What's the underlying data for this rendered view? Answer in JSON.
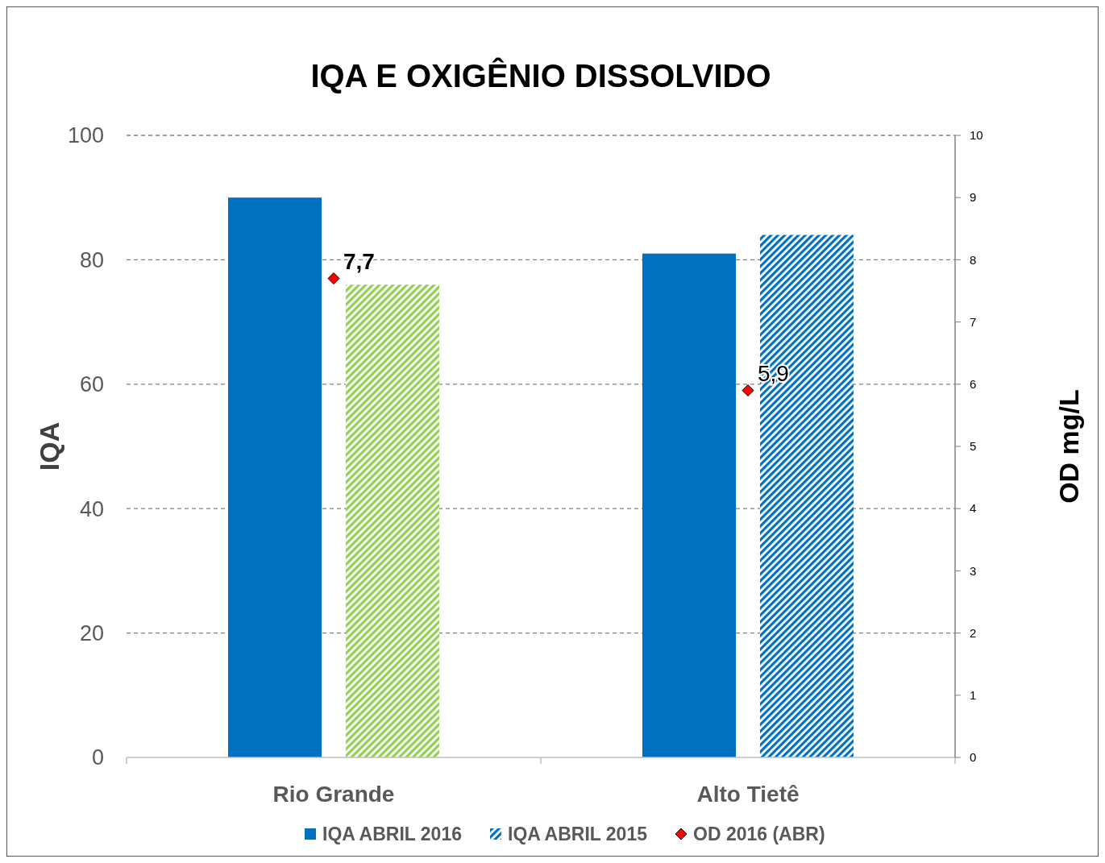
{
  "chart_data": {
    "type": "bar",
    "title": "IQA E OXIGÊNIO DISSOLVIDO",
    "ylabel": "IQA",
    "y2label": "OD mg/L",
    "categories": [
      "Rio Grande",
      "Alto Tietê"
    ],
    "series": [
      {
        "name": "IQA ABRIL 2016",
        "color": "#0070c0",
        "values": [
          90,
          81
        ]
      },
      {
        "name": "IQA ABRIL 2015",
        "color": "#0070c0",
        "colors": [
          "#92d050",
          "#0070c0"
        ],
        "values": [
          76,
          84
        ]
      },
      {
        "name": "OD 2016 (ABR)",
        "type": "scatter",
        "axis": "y2",
        "color": "#ff0000",
        "x": [
          "Rio Grande",
          "Alto Tietê"
        ],
        "values": [
          7.7,
          5.9
        ],
        "value_labels": [
          "7,7",
          "5,9"
        ]
      }
    ],
    "ylim": [
      0,
      100
    ],
    "yticks": [
      0,
      20,
      40,
      60,
      80,
      100
    ],
    "y2lim": [
      0,
      10
    ],
    "y2ticks": [
      0,
      1,
      2,
      3,
      4,
      5,
      6,
      7,
      8,
      9,
      10
    ],
    "grid": "y",
    "legend": "bottom",
    "marker": "diamond"
  }
}
